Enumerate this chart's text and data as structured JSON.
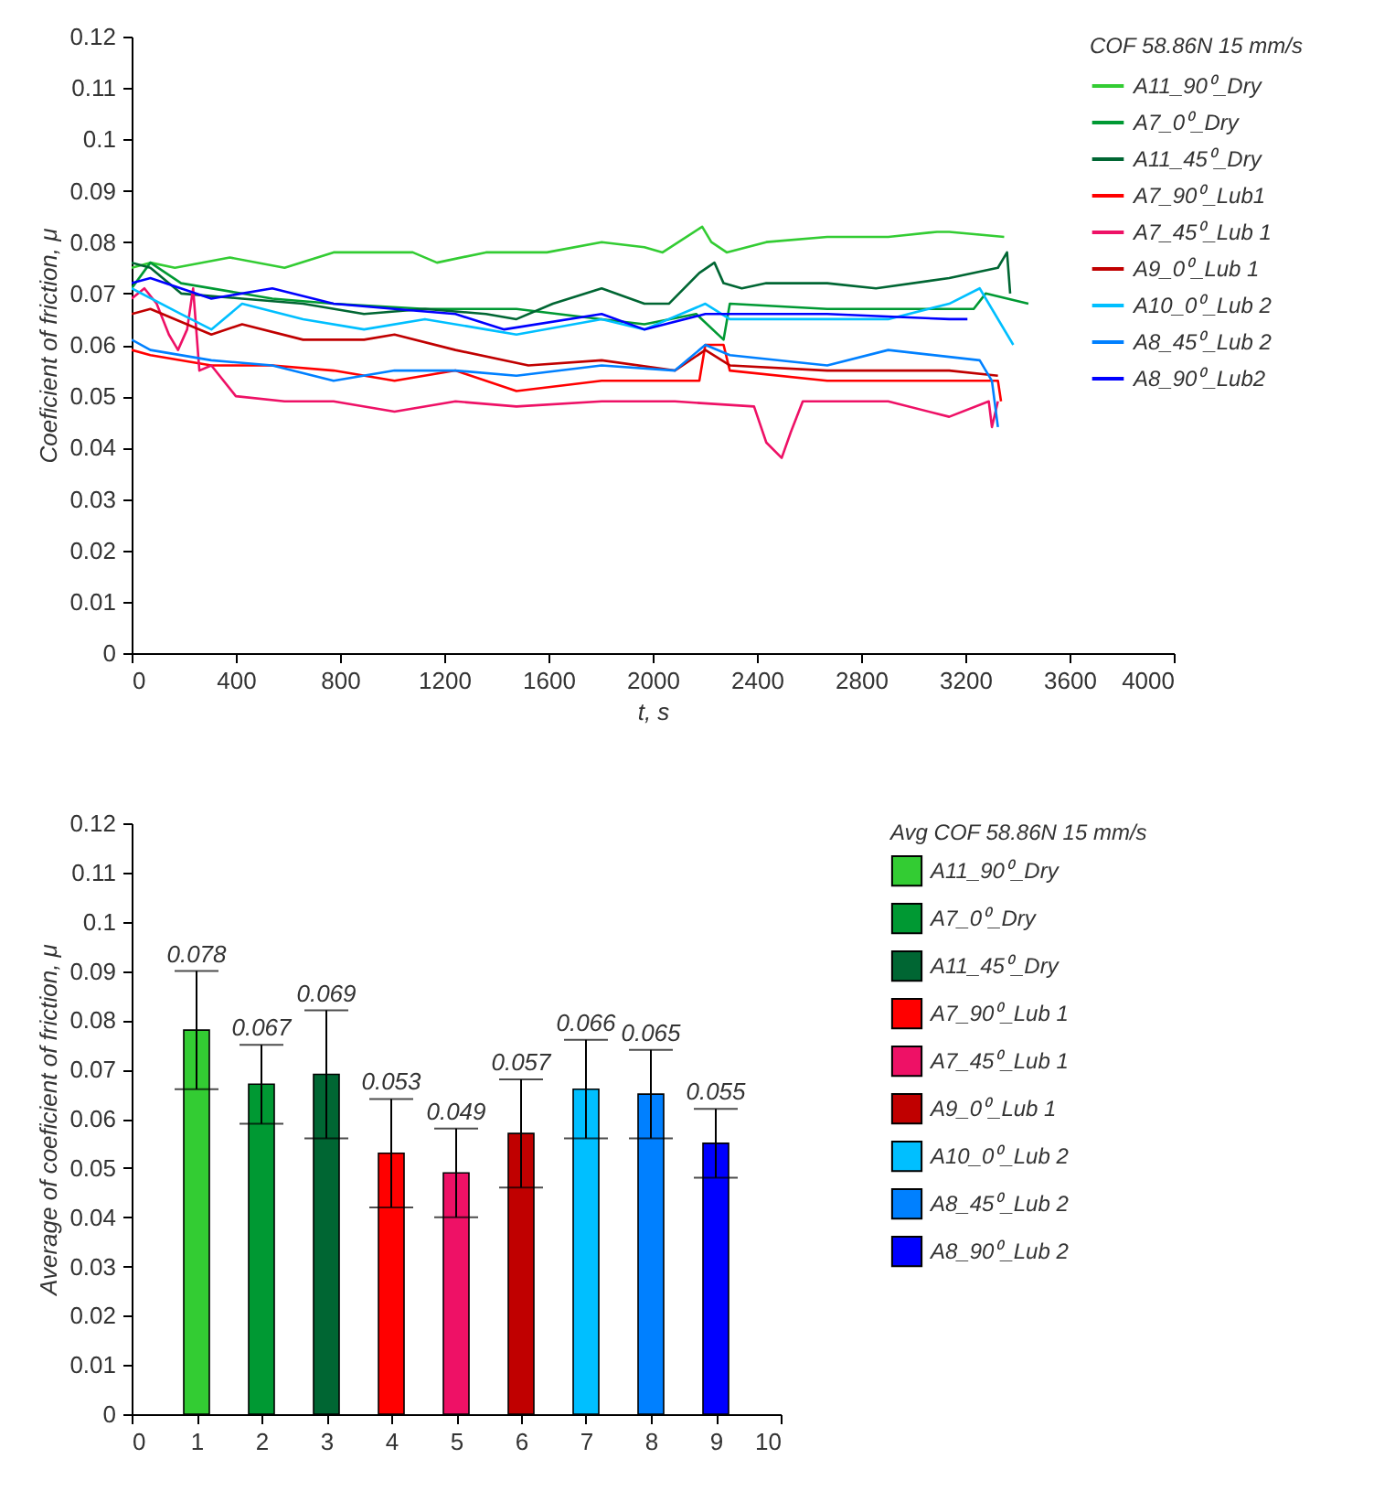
{
  "chart_data": [
    {
      "type": "line",
      "xlabel": "t, s",
      "ylabel": "Coeficient of friction, μ",
      "legend_title": "COF 58.86N 15 mm/s",
      "legend": "top right",
      "grid": false,
      "xlim": [
        0,
        4000
      ],
      "xticks": [
        0,
        400,
        800,
        1200,
        1600,
        2000,
        2400,
        2800,
        3200,
        3600,
        4000
      ],
      "ylim": [
        0,
        0.12
      ],
      "yticks": [
        0,
        0.01,
        0.02,
        0.03,
        0.04,
        0.05,
        0.06,
        0.07,
        0.08,
        0.09,
        0.1,
        0.11,
        0.12
      ],
      "series": [
        {
          "name": "A11_90⁰_Dry",
          "color": "#33cc33",
          "x": [
            0,
            72,
            166,
            377,
            587,
            775,
            1079,
            1172,
            1360,
            1594,
            1804,
            1968,
            2038,
            2190,
            2225,
            2284,
            2436,
            2670,
            2904,
            3091,
            3138,
            3349
          ],
          "values": [
            0.075,
            0.076,
            0.075,
            0.077,
            0.075,
            0.078,
            0.078,
            0.076,
            0.078,
            0.078,
            0.08,
            0.079,
            0.078,
            0.083,
            0.08,
            0.078,
            0.08,
            0.081,
            0.081,
            0.082,
            0.082,
            0.081
          ]
        },
        {
          "name": "A7_0⁰_Dry",
          "color": "#009933",
          "x": [
            0,
            72,
            190,
            540,
            775,
            1126,
            1477,
            1804,
            1968,
            2167,
            2272,
            2296,
            2670,
            3138,
            3232,
            3278,
            3442
          ],
          "values": [
            0.071,
            0.076,
            0.072,
            0.069,
            0.068,
            0.067,
            0.067,
            0.065,
            0.064,
            0.066,
            0.061,
            0.068,
            0.067,
            0.067,
            0.067,
            0.07,
            0.068
          ]
        },
        {
          "name": "A11_45⁰_Dry",
          "color": "#006633",
          "x": [
            0,
            72,
            190,
            424,
            658,
            892,
            1126,
            1360,
            1477,
            1617,
            1804,
            1968,
            2062,
            2179,
            2237,
            2272,
            2342,
            2436,
            2670,
            2857,
            3138,
            3325,
            3360,
            3372
          ],
          "values": [
            0.076,
            0.075,
            0.07,
            0.069,
            0.068,
            0.066,
            0.067,
            0.066,
            0.065,
            0.068,
            0.071,
            0.068,
            0.068,
            0.074,
            0.076,
            0.072,
            0.071,
            0.072,
            0.072,
            0.071,
            0.073,
            0.075,
            0.078,
            0.07
          ]
        },
        {
          "name": "A7_90⁰_Lub1",
          "color": "#ff0000",
          "x": [
            0,
            72,
            306,
            540,
            775,
            1009,
            1243,
            1477,
            1804,
            2085,
            2179,
            2202,
            2272,
            2296,
            2670,
            3021,
            3325,
            3337
          ],
          "values": [
            0.059,
            0.058,
            0.056,
            0.056,
            0.055,
            0.053,
            0.055,
            0.051,
            0.053,
            0.053,
            0.053,
            0.06,
            0.06,
            0.055,
            0.053,
            0.053,
            0.053,
            0.049
          ]
        },
        {
          "name": "A7_45⁰_Lub 1",
          "color": "#ee1166",
          "x": [
            0,
            49,
            96,
            143,
            178,
            213,
            236,
            260,
            306,
            400,
            587,
            775,
            1009,
            1243,
            1477,
            1804,
            2085,
            2389,
            2436,
            2495,
            2530,
            2576,
            2904,
            3138,
            3290,
            3302,
            3325
          ],
          "values": [
            0.069,
            0.071,
            0.068,
            0.062,
            0.059,
            0.063,
            0.071,
            0.055,
            0.056,
            0.05,
            0.049,
            0.049,
            0.047,
            0.049,
            0.048,
            0.049,
            0.049,
            0.048,
            0.041,
            0.038,
            0.043,
            0.049,
            0.049,
            0.046,
            0.049,
            0.044,
            0.049
          ]
        },
        {
          "name": "A9_0⁰_Lub 1",
          "color": "#c00000",
          "x": [
            0,
            72,
            306,
            424,
            658,
            892,
            1009,
            1243,
            1523,
            1804,
            2085,
            2202,
            2296,
            2670,
            3138,
            3325
          ],
          "values": [
            0.066,
            0.067,
            0.062,
            0.064,
            0.061,
            0.061,
            0.062,
            0.059,
            0.056,
            0.057,
            0.055,
            0.059,
            0.056,
            0.055,
            0.055,
            0.054
          ]
        },
        {
          "name": "A10_0⁰_Lub 2",
          "color": "#00bfff",
          "x": [
            0,
            190,
            306,
            424,
            658,
            892,
            1126,
            1360,
            1477,
            1804,
            1968,
            2202,
            2296,
            2670,
            2904,
            3138,
            3255,
            3384
          ],
          "values": [
            0.071,
            0.066,
            0.063,
            0.068,
            0.065,
            0.063,
            0.065,
            0.063,
            0.062,
            0.065,
            0.063,
            0.068,
            0.065,
            0.065,
            0.065,
            0.068,
            0.071,
            0.06
          ]
        },
        {
          "name": "A8_45⁰_Lub 2",
          "color": "#0080ff",
          "x": [
            0,
            72,
            306,
            540,
            775,
            1009,
            1243,
            1477,
            1804,
            2085,
            2202,
            2296,
            2670,
            2904,
            3255,
            3302,
            3325
          ],
          "values": [
            0.061,
            0.059,
            0.057,
            0.056,
            0.053,
            0.055,
            0.055,
            0.054,
            0.056,
            0.055,
            0.06,
            0.058,
            0.056,
            0.059,
            0.057,
            0.053,
            0.044
          ]
        },
        {
          "name": "A8_90⁰_Lub2",
          "color": "#0000ff",
          "x": [
            0,
            72,
            306,
            540,
            775,
            1009,
            1243,
            1430,
            1804,
            1968,
            2202,
            2296,
            2670,
            3138,
            3208
          ],
          "values": [
            0.072,
            0.073,
            0.069,
            0.071,
            0.068,
            0.067,
            0.066,
            0.063,
            0.066,
            0.063,
            0.066,
            0.066,
            0.066,
            0.065,
            0.065
          ]
        }
      ]
    },
    {
      "type": "bar",
      "ylabel": "Average of coeficient of friction, μ",
      "legend_title": "Avg COF 58.86N 15 mm/s",
      "legend": "right",
      "grid": false,
      "data_labels": true,
      "xlim": [
        0,
        10
      ],
      "xticks": [
        0,
        1,
        2,
        3,
        4,
        5,
        6,
        7,
        8,
        9,
        10
      ],
      "ylim": [
        0,
        0.12
      ],
      "yticks": [
        0,
        0.01,
        0.02,
        0.03,
        0.04,
        0.05,
        0.06,
        0.07,
        0.08,
        0.09,
        0.1,
        0.11,
        0.12
      ],
      "series": [
        {
          "name": "A11_90⁰_Dry",
          "color": "#33cc33",
          "x": [
            1
          ],
          "values": [
            0.078
          ],
          "errors": [
            0.012
          ]
        },
        {
          "name": "A7_0⁰_Dry",
          "color": "#009933",
          "x": [
            2
          ],
          "values": [
            0.067
          ],
          "errors": [
            0.008
          ]
        },
        {
          "name": "A11_45⁰_Dry",
          "color": "#006633",
          "x": [
            3
          ],
          "values": [
            0.069
          ],
          "errors": [
            0.013
          ]
        },
        {
          "name": "A7_90⁰_Lub 1",
          "color": "#ff0000",
          "x": [
            4
          ],
          "values": [
            0.053
          ],
          "errors": [
            0.011
          ]
        },
        {
          "name": "A7_45⁰_Lub 1",
          "color": "#ee1166",
          "x": [
            5
          ],
          "values": [
            0.049
          ],
          "errors": [
            0.009
          ]
        },
        {
          "name": "A9_0⁰_Lub 1",
          "color": "#c00000",
          "x": [
            6
          ],
          "values": [
            0.057
          ],
          "errors": [
            0.011
          ]
        },
        {
          "name": "A10_0⁰_Lub 2",
          "color": "#00bfff",
          "x": [
            7
          ],
          "values": [
            0.066
          ],
          "errors": [
            0.01
          ]
        },
        {
          "name": "A8_45⁰_Lub 2",
          "color": "#0080ff",
          "x": [
            8
          ],
          "values": [
            0.065
          ],
          "errors": [
            0.009
          ]
        },
        {
          "name": "A8_90⁰_Lub 2",
          "color": "#0000ff",
          "x": [
            9
          ],
          "values": [
            0.055
          ],
          "errors": [
            0.007
          ]
        }
      ]
    }
  ]
}
